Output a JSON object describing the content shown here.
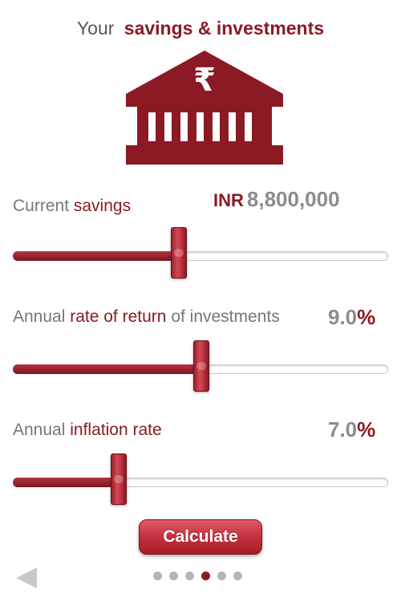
{
  "header": {
    "title_prefix": "Your",
    "title_accent": "savings & investments",
    "icon": "bank-rupee-icon"
  },
  "fields": {
    "savings": {
      "label_plain": "Current",
      "label_accent": "savings",
      "currency": "INR",
      "value": "8,800,000",
      "slider_fraction": 0.44
    },
    "return_rate": {
      "label_plain_1": "Annual",
      "label_accent": "rate of return",
      "label_plain_2": "of investments",
      "value_number": "9.0",
      "value_unit": "%",
      "slider_fraction": 0.5
    },
    "inflation": {
      "label_plain": "Annual",
      "label_accent": "inflation rate",
      "value_number": "7.0",
      "value_unit": "%",
      "slider_fraction": 0.28
    }
  },
  "actions": {
    "calculate_label": "Calculate"
  },
  "pagination": {
    "total": 6,
    "active_index": 3
  },
  "colors": {
    "accent": "#8b1a24",
    "muted_text": "#777777",
    "value_gray": "#8c8c8c"
  }
}
